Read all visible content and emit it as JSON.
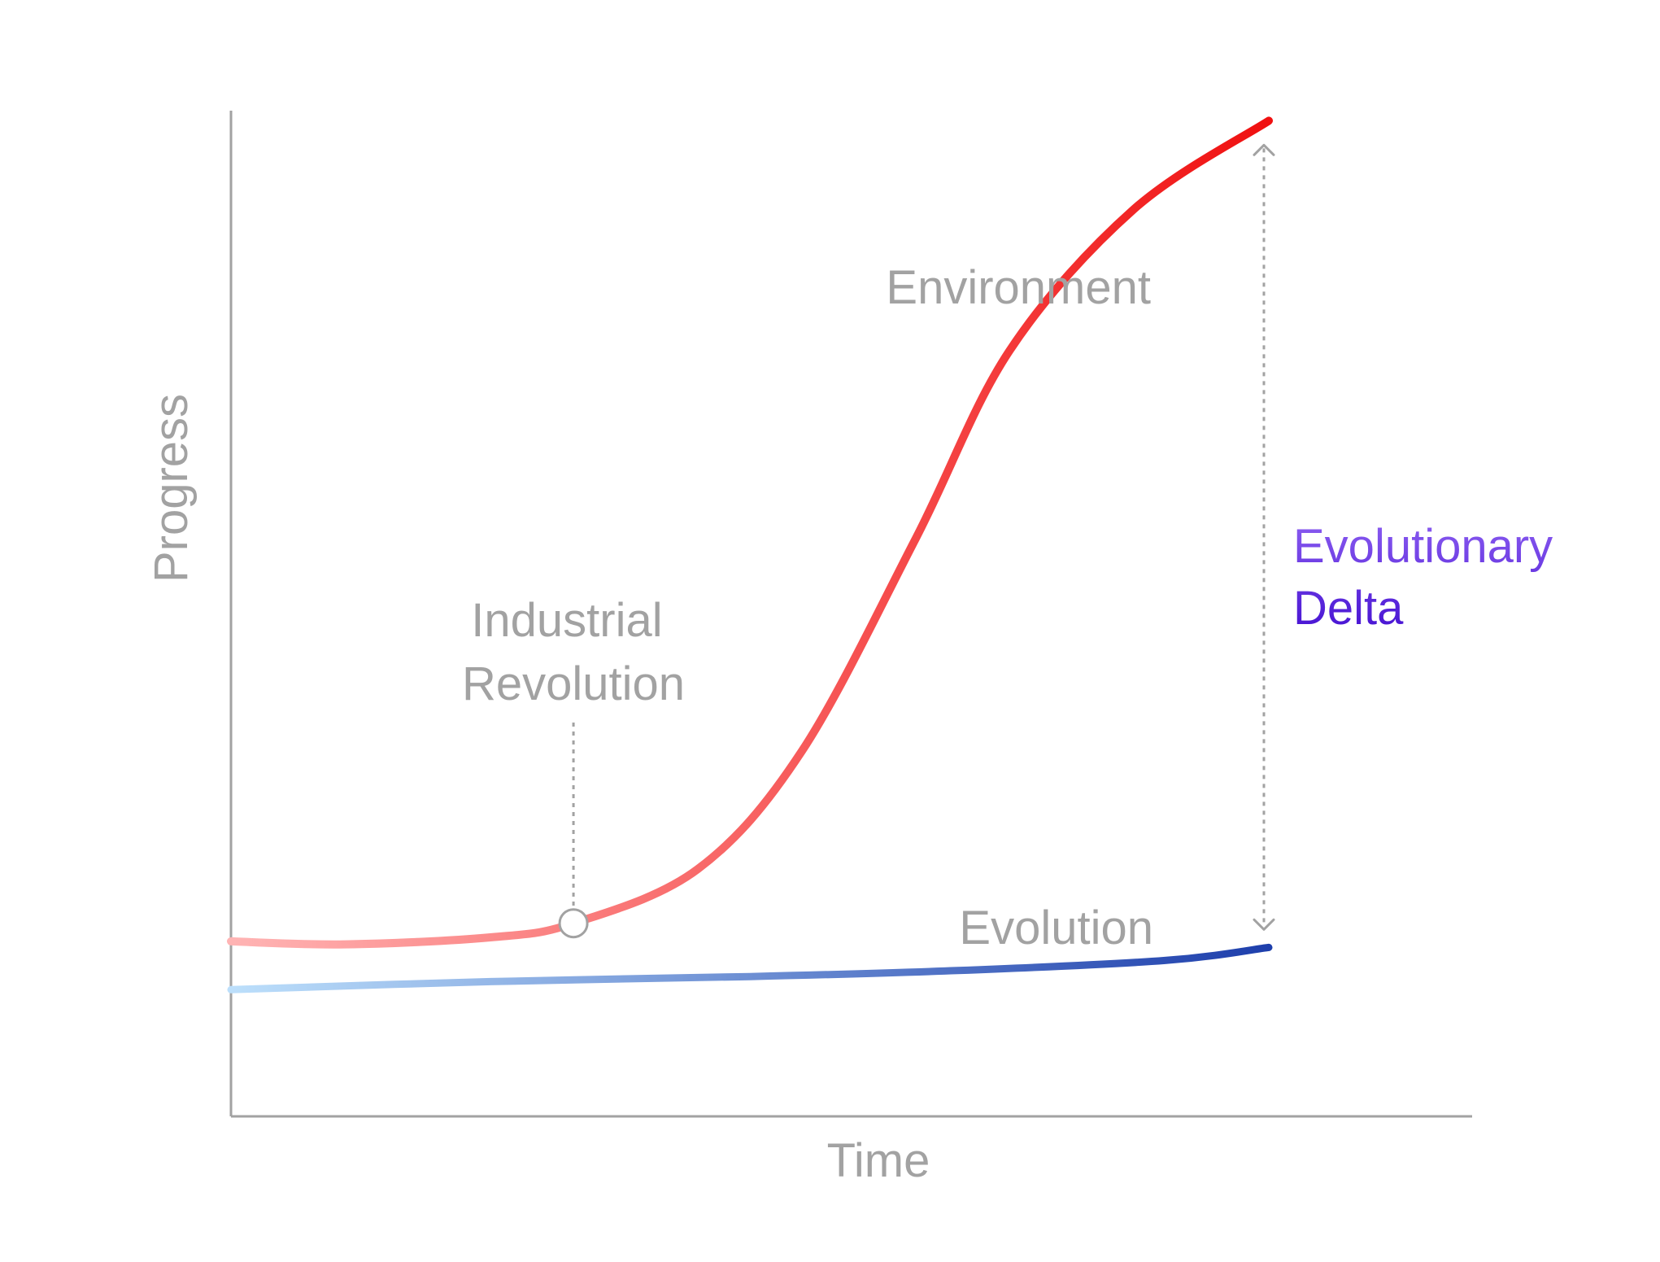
{
  "chart_data": {
    "type": "line",
    "title": "",
    "xlabel": "Time",
    "ylabel": "Progress",
    "grid": false,
    "series": [
      {
        "name": "Environment",
        "x": [
          0,
          0.11,
          0.25,
          0.33,
          0.45,
          0.55,
          0.66,
          0.75,
          0.87,
          1.0
        ],
        "y": [
          0.174,
          0.171,
          0.178,
          0.192,
          0.246,
          0.363,
          0.575,
          0.761,
          0.902,
          0.99
        ]
      },
      {
        "name": "Evolution",
        "x": [
          0,
          0.25,
          0.5,
          0.7,
          0.9,
          1.0
        ],
        "y": [
          0.126,
          0.134,
          0.139,
          0.145,
          0.155,
          0.168
        ]
      }
    ],
    "annotations": [
      {
        "text_lines": [
          "Industrial",
          "Revolution"
        ],
        "x": 0.33,
        "y": 0.192
      },
      {
        "text_lines": [
          "Evolutionary",
          "Delta"
        ],
        "x": 1.0
      }
    ],
    "colors": {
      "axis": "#a2a2a2",
      "label": "#a2a2a2",
      "environment_start": "#ffb4b4",
      "environment_end": "#f01010",
      "evolution_start": "#bcdffb",
      "evolution_end": "#1e3fac",
      "delta_start": "#8a5cf0",
      "delta_end": "#4a16d4",
      "marker_fill": "#ffffff",
      "marker_stroke": "#a2a2a2"
    }
  }
}
